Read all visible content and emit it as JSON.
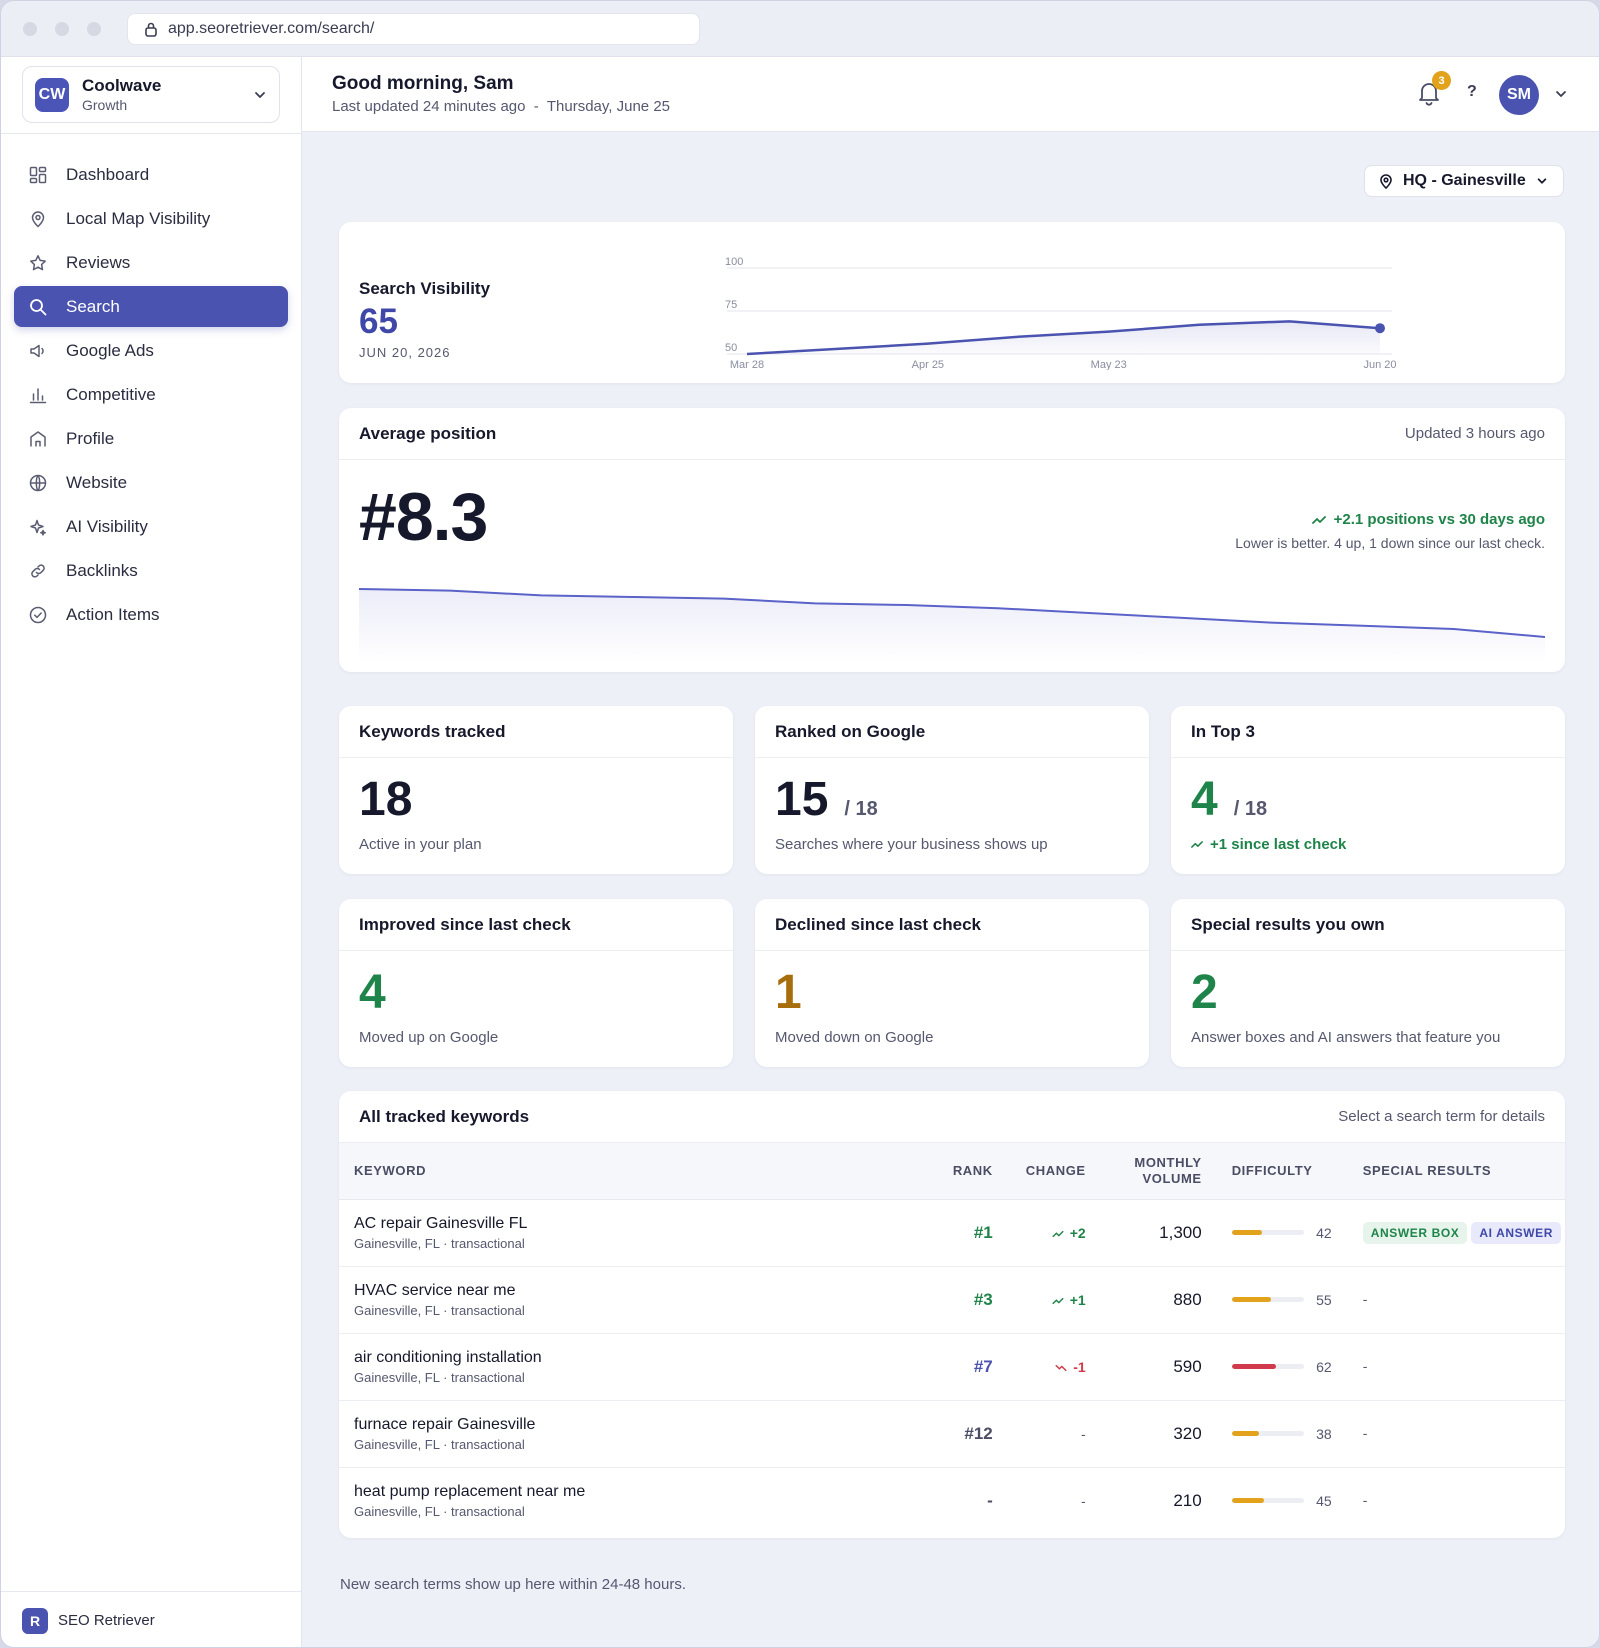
{
  "browser": {
    "url": "app.seoretriever.com/search/"
  },
  "org": {
    "badge": "CW",
    "name": "Coolwave",
    "plan": "Growth"
  },
  "nav": [
    {
      "label": "Dashboard",
      "icon": "grid-icon"
    },
    {
      "label": "Local Map Visibility",
      "icon": "map-pin-icon"
    },
    {
      "label": "Reviews",
      "icon": "star-icon"
    },
    {
      "label": "Search",
      "icon": "search-icon",
      "active": true
    },
    {
      "label": "Google Ads",
      "icon": "megaphone-icon"
    },
    {
      "label": "Competitive",
      "icon": "bar-chart-icon"
    },
    {
      "label": "Profile",
      "icon": "storefront-icon"
    },
    {
      "label": "Website",
      "icon": "globe-icon"
    },
    {
      "label": "AI Visibility",
      "icon": "sparkle-icon"
    },
    {
      "label": "Backlinks",
      "icon": "link-icon"
    },
    {
      "label": "Action Items",
      "icon": "check-circle-icon"
    }
  ],
  "footer": {
    "badge": "R",
    "name": "SEO Retriever"
  },
  "header": {
    "greeting": "Good morning, Sam",
    "updated": "Last updated 24 minutes ago  -  Thursday, June 25",
    "notifications": "3",
    "help": "?",
    "avatar": "SM"
  },
  "location": {
    "label": "HQ - Gainesville"
  },
  "visibility": {
    "title": "Search Visibility",
    "value": "65",
    "date": "JUN 20, 2026"
  },
  "chart_data": [
    {
      "type": "area",
      "title": "Search Visibility",
      "x": [
        "Mar 28",
        "Apr 11",
        "Apr 25",
        "May 9",
        "May 23",
        "Jun 6",
        "Jun 13",
        "Jun 20"
      ],
      "values": [
        50,
        53,
        56,
        60,
        63,
        67,
        69,
        65
      ],
      "xticks": [
        "Mar 28",
        "Apr 25",
        "May 23",
        "Jun 20"
      ],
      "yticks": [
        50,
        75,
        100
      ],
      "ylim": [
        50,
        100
      ],
      "grid": true,
      "color": "#4b53b0"
    },
    {
      "type": "area",
      "title": "Average position",
      "values": [
        11.3,
        11.2,
        10.9,
        10.8,
        10.7,
        10.4,
        10.3,
        10.1,
        9.8,
        9.5,
        9.2,
        9.0,
        8.8,
        8.3
      ],
      "ylim": [
        7,
        12
      ],
      "color": "#5b62c8"
    }
  ],
  "avg_position": {
    "title": "Average position",
    "updated": "Updated 3 hours ago",
    "value": "#8.3",
    "delta": "+2.1 positions vs 30 days ago",
    "note": "Lower is better. 4 up, 1 down since our last check."
  },
  "stats": {
    "keywords": {
      "title": "Keywords tracked",
      "value": "18",
      "sub": "Active in your plan"
    },
    "ranked": {
      "title": "Ranked on Google",
      "value": "15",
      "denom": "/ 18",
      "sub": "Searches where your business shows up"
    },
    "top3": {
      "title": "In Top 3",
      "value": "4",
      "denom": "/ 18",
      "sub": "+1 since last check"
    },
    "improved": {
      "title": "Improved since last check",
      "value": "4",
      "sub": "Moved up on Google"
    },
    "declined": {
      "title": "Declined since last check",
      "value": "1",
      "sub": "Moved down on Google"
    },
    "special": {
      "title": "Special results you own",
      "value": "2",
      "sub": "Answer boxes and AI answers that feature you"
    }
  },
  "table": {
    "title": "All tracked keywords",
    "hint": "Select a search term for details",
    "columns": {
      "keyword": "KEYWORD",
      "rank": "RANK",
      "change": "CHANGE",
      "volume_1": "MONTHLY",
      "volume_2": "VOLUME",
      "difficulty": "DIFFICULTY",
      "special": "SPECIAL RESULTS"
    },
    "rows": [
      {
        "keyword": "AC repair Gainesville FL",
        "meta": "Gainesville, FL · transactional",
        "rank": "#1",
        "change": "+2",
        "volume": "1,300",
        "difficulty": 42,
        "special": [
          "ANSWER BOX",
          "AI ANSWER"
        ]
      },
      {
        "keyword": "HVAC service near me",
        "meta": "Gainesville, FL · transactional",
        "rank": "#3",
        "change": "+1",
        "volume": "880",
        "difficulty": 55,
        "special": []
      },
      {
        "keyword": "air conditioning installation",
        "meta": "Gainesville, FL · transactional",
        "rank": "#7",
        "change": "-1",
        "volume": "590",
        "difficulty": 62,
        "special": []
      },
      {
        "keyword": "furnace repair Gainesville",
        "meta": "Gainesville, FL · transactional",
        "rank": "#12",
        "change": "-",
        "volume": "320",
        "difficulty": 38,
        "special": []
      },
      {
        "keyword": "heat pump replacement near me",
        "meta": "Gainesville, FL · transactional",
        "rank": "-",
        "change": "-",
        "volume": "210",
        "difficulty": 45,
        "special": []
      }
    ],
    "empty_special": "-"
  },
  "footnote": "New search terms show up here within 24-48 hours.",
  "colors": {
    "accent": "#4b53b0",
    "green": "#1e8449",
    "amber": "#a86d0c",
    "red": "#d03a4a",
    "bar_amber": "#e2a21b",
    "bar_red": "#d03a4a"
  }
}
